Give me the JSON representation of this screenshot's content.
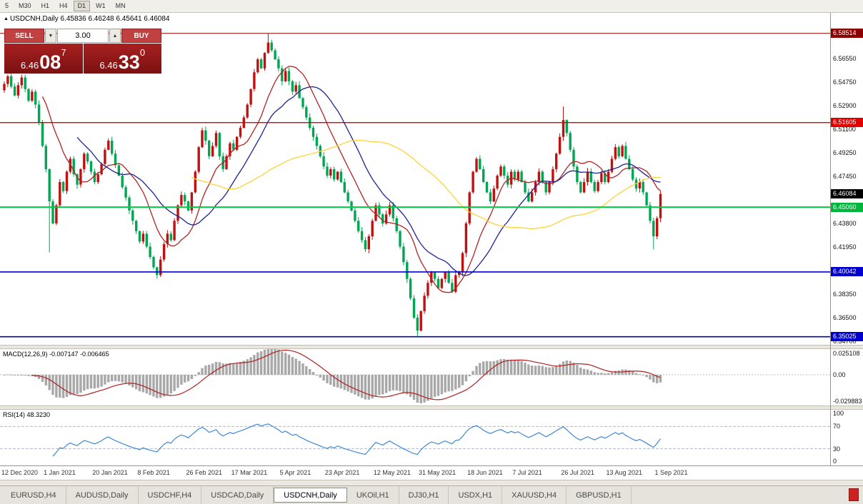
{
  "toolbar": {
    "timeframes": [
      "5",
      "M30",
      "H1",
      "H4",
      "D1",
      "W1",
      "MN"
    ],
    "active": "D1"
  },
  "chart_header": {
    "collapse_icon": "▲",
    "symbol": "USDCNH,Daily",
    "ohlc": "6.45836 6.46248 6.45641 6.46084"
  },
  "trade_panel": {
    "sell_label": "SELL",
    "buy_label": "BUY",
    "volume": "3.00",
    "volume_up_icon": "▲",
    "volume_down_icon": "▼",
    "sell_price": {
      "base": "6.46",
      "big": "08",
      "sup": "7"
    },
    "buy_price": {
      "base": "6.46",
      "big": "33",
      "sup": "0"
    }
  },
  "price_axis": {
    "ticks": [
      "6.56550",
      "6.54750",
      "6.52900",
      "6.51100",
      "6.49250",
      "6.47450",
      "6.43800",
      "6.41950",
      "6.38350",
      "6.36500",
      "6.34700"
    ],
    "badges": [
      {
        "text": "6.58514",
        "bg": "#8b0000"
      },
      {
        "text": "6.51605",
        "bg": "#e00000"
      },
      {
        "text": "6.46084",
        "bg": "#000000"
      },
      {
        "text": "6.45060",
        "bg": "#00b43c"
      },
      {
        "text": "6.40042",
        "bg": "#0000cc"
      },
      {
        "text": "6.35025",
        "bg": "#0000cc"
      }
    ]
  },
  "hlines": [
    {
      "value": 6.58514,
      "color": "#8b0000",
      "width": 1
    },
    {
      "value": 6.51605,
      "color": "#e00000",
      "width": 1.4
    },
    {
      "value": 6.4506,
      "color": "#00cc44",
      "width": 2
    },
    {
      "value": 6.40042,
      "color": "#0000cc",
      "width": 1.6
    },
    {
      "value": 6.35025,
      "color": "#0000cc",
      "width": 1.6
    }
  ],
  "chart_data": {
    "type": "candlestick",
    "title": "USDCNH Daily",
    "price_min": 6.344,
    "price_max": 6.601,
    "open_first": 6.541,
    "bull_color": "#c01010",
    "bear_color": "#00a651",
    "closes": [
      6.546,
      6.552,
      6.544,
      6.537,
      6.545,
      6.551,
      6.542,
      6.533,
      6.54,
      6.53,
      6.516,
      6.498,
      6.48,
      6.455,
      6.438,
      6.452,
      6.47,
      6.463,
      6.478,
      6.488,
      6.476,
      6.468,
      6.48,
      6.492,
      6.486,
      6.478,
      6.47,
      6.476,
      6.484,
      6.495,
      6.502,
      6.492,
      6.483,
      6.475,
      6.466,
      6.458,
      6.448,
      6.44,
      6.432,
      6.424,
      6.43,
      6.42,
      6.412,
      6.404,
      6.398,
      6.41,
      6.422,
      6.43,
      6.425,
      6.44,
      6.452,
      6.46,
      6.455,
      6.448,
      6.462,
      6.478,
      6.497,
      6.51,
      6.502,
      6.49,
      6.498,
      6.508,
      6.49,
      6.48,
      6.49,
      6.5,
      6.495,
      6.505,
      6.512,
      6.52,
      6.53,
      6.542,
      6.555,
      6.565,
      6.558,
      6.57,
      6.578,
      6.572,
      6.565,
      6.558,
      6.548,
      6.556,
      6.548,
      6.54,
      6.545,
      6.535,
      6.528,
      6.52,
      6.512,
      6.505,
      6.498,
      6.49,
      6.482,
      6.475,
      6.48,
      6.472,
      6.478,
      6.47,
      6.462,
      6.455,
      6.448,
      6.44,
      6.432,
      6.425,
      6.418,
      6.428,
      6.44,
      6.452,
      6.445,
      6.438,
      6.445,
      6.452,
      6.442,
      6.432,
      6.42,
      6.408,
      6.395,
      6.38,
      6.365,
      6.355,
      6.37,
      6.382,
      6.392,
      6.4,
      6.395,
      6.388,
      6.395,
      6.4,
      6.392,
      6.385,
      6.398,
      6.4,
      6.415,
      6.438,
      6.462,
      6.478,
      6.488,
      6.48,
      6.47,
      6.462,
      6.455,
      6.465,
      6.475,
      6.482,
      6.475,
      6.468,
      6.478,
      6.472,
      6.478,
      6.47,
      6.462,
      6.455,
      6.462,
      6.47,
      6.478,
      6.47,
      6.462,
      6.47,
      6.48,
      6.492,
      6.505,
      6.518,
      6.508,
      6.495,
      6.482,
      6.47,
      6.462,
      6.47,
      6.478,
      6.47,
      6.463,
      6.47,
      6.477,
      6.47,
      6.478,
      6.488,
      6.497,
      6.49,
      6.498,
      6.488,
      6.48,
      6.472,
      6.465,
      6.47,
      6.462,
      6.452,
      6.44,
      6.428,
      6.442,
      6.4608
    ],
    "wick_overrides": {
      "2": {
        "high": 6.5655
      },
      "13": {
        "low": 6.4155
      },
      "44": {
        "low": 6.3952
      },
      "76": {
        "high": 6.5851
      },
      "119": {
        "low": 6.3502
      },
      "161": {
        "high": 6.5285
      },
      "187": {
        "low": 6.418
      }
    },
    "moving_averages": [
      {
        "period": 12,
        "color": "#b22222"
      },
      {
        "period": 22,
        "color": "#1c2296"
      },
      {
        "period": 55,
        "color": "#ffd23a"
      }
    ],
    "dates": [
      {
        "label": "12 Dec 2020",
        "index": 0
      },
      {
        "label": "1 Jan 2021",
        "index": 13
      },
      {
        "label": "20 Jan 2021",
        "index": 27
      },
      {
        "label": "8 Feb 2021",
        "index": 40
      },
      {
        "label": "26 Feb 2021",
        "index": 54
      },
      {
        "label": "17 Mar 2021",
        "index": 67
      },
      {
        "label": "5 Apr 2021",
        "index": 81
      },
      {
        "label": "23 Apr 2021",
        "index": 94
      },
      {
        "label": "12 May 2021",
        "index": 108
      },
      {
        "label": "31 May 2021",
        "index": 121
      },
      {
        "label": "18 Jun 2021",
        "index": 135
      },
      {
        "label": "7 Jul 2021",
        "index": 148
      },
      {
        "label": "26 Jul 2021",
        "index": 162
      },
      {
        "label": "13 Aug 2021",
        "index": 175
      },
      {
        "label": "1 Sep 2021",
        "index": 189
      }
    ]
  },
  "macd_panel": {
    "label": "MACD(12,26,9) -0.007147 -0.006465",
    "fast": 12,
    "slow": 26,
    "signal": 9,
    "axis_top": "0.025108",
    "axis_zero": "0.00",
    "axis_bottom": "-0.029883",
    "range_max": 0.0256,
    "range_min": -0.0305,
    "hist_color": "#a8a8a8",
    "signal_color": "#b02020"
  },
  "rsi_panel": {
    "label": "RSI(14) 48.3230",
    "period": 14,
    "levels": [
      70,
      30
    ],
    "axis": [
      "100",
      "70",
      "30",
      "0"
    ],
    "line_color": "#2f7ed8"
  },
  "tabs": [
    {
      "label": "EURUSD,H4"
    },
    {
      "label": "AUDUSD,Daily"
    },
    {
      "label": "USDCHF,H4"
    },
    {
      "label": "USDCAD,Daily"
    },
    {
      "label": "USDCNH,Daily",
      "active": true
    },
    {
      "label": "UKOil,H1"
    },
    {
      "label": "DJ30,H1"
    },
    {
      "label": "USDX,H1"
    },
    {
      "label": "XAUUSD,H4"
    },
    {
      "label": "GBPUSD,H1"
    }
  ]
}
